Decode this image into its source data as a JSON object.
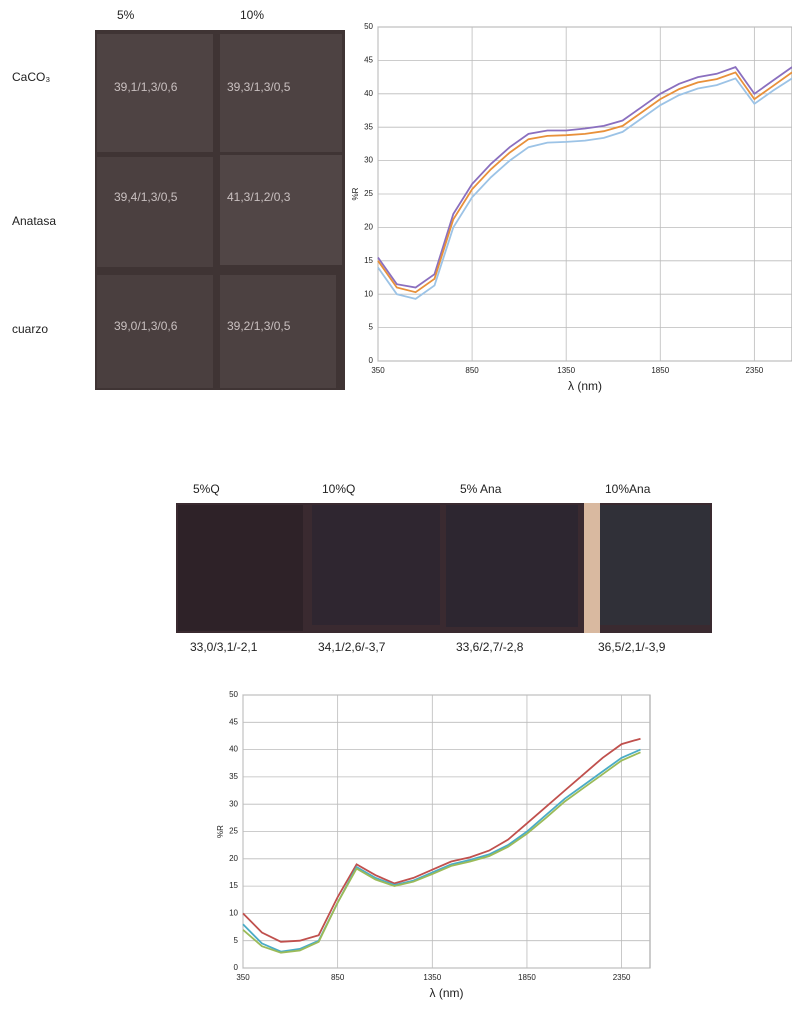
{
  "top_panel": {
    "columns": [
      "5%",
      "10%"
    ],
    "rows": [
      {
        "label": "CaCO₃",
        "cells": [
          "39,1/1,3/0,6",
          "39,3/1,3/0,5"
        ]
      },
      {
        "label": "Anatasa",
        "cells": [
          "39,4/1,3/0,5",
          "41,3/1,2/0,3"
        ]
      },
      {
        "label": "cuarzo",
        "cells": [
          "39,0/1,3/0,6",
          "39,2/1,3/0,5"
        ]
      }
    ]
  },
  "bottom_panel": {
    "samples": [
      {
        "label": "5%Q",
        "value": "33,0/3,1/-2,1"
      },
      {
        "label": "10%Q",
        "value": "34,1/2,6/-3,7"
      },
      {
        "label": "5% Ana",
        "value": "33,6/2,7/-2,8"
      },
      {
        "label": "10%Ana",
        "value": "36,5/2,1/-3,9"
      }
    ]
  },
  "chart_data": [
    {
      "type": "line",
      "ylabel": "%R",
      "xlabel": "λ (nm)",
      "grid": true,
      "x": [
        350,
        450,
        550,
        650,
        750,
        850,
        950,
        1050,
        1150,
        1250,
        1350,
        1450,
        1550,
        1650,
        1750,
        1850,
        1950,
        2050,
        2150,
        2250,
        2350,
        2450,
        2550
      ],
      "xlim": [
        350,
        2550
      ],
      "ylim": [
        0,
        50
      ],
      "xticks": [
        350,
        850,
        1350,
        1850,
        2350
      ],
      "yticks": [
        0,
        5,
        10,
        15,
        20,
        25,
        30,
        35,
        40,
        45,
        50
      ],
      "series": [
        {
          "color": "#8a6fbf",
          "values": [
            15.5,
            11.5,
            11,
            13,
            22,
            26.5,
            29.5,
            32,
            34,
            34.5,
            34.5,
            34.8,
            35.2,
            36,
            38,
            40,
            41.5,
            42.5,
            43,
            44,
            40,
            42,
            44
          ]
        },
        {
          "color": "#e8903a",
          "values": [
            15,
            11,
            10.3,
            12.3,
            21.2,
            25.7,
            28.7,
            31.2,
            33.2,
            33.7,
            33.8,
            34,
            34.4,
            35.2,
            37.2,
            39.2,
            40.7,
            41.7,
            42.2,
            43.2,
            39.2,
            41.2,
            43.2
          ]
        },
        {
          "color": "#9cc3e6",
          "values": [
            14,
            10,
            9.3,
            11.3,
            20,
            24.5,
            27.5,
            30,
            32,
            32.7,
            32.8,
            33,
            33.4,
            34.3,
            36.3,
            38.3,
            39.8,
            40.8,
            41.3,
            42.3,
            38.5,
            40.5,
            42.3
          ]
        }
      ]
    },
    {
      "type": "line",
      "ylabel": "%R",
      "xlabel": "λ (nm)",
      "grid": true,
      "x": [
        350,
        450,
        550,
        650,
        750,
        850,
        950,
        1050,
        1150,
        1250,
        1350,
        1450,
        1550,
        1650,
        1750,
        1850,
        1950,
        2050,
        2150,
        2250,
        2350,
        2450
      ],
      "xlim": [
        350,
        2500
      ],
      "ylim": [
        0,
        50
      ],
      "xticks": [
        350,
        850,
        1350,
        1850,
        2350
      ],
      "yticks": [
        0,
        5,
        10,
        15,
        20,
        25,
        30,
        35,
        40,
        45,
        50
      ],
      "series": [
        {
          "color": "#c0504d",
          "values": [
            10,
            6.5,
            4.8,
            5,
            6,
            13,
            19,
            17,
            15.5,
            16.5,
            18,
            19.5,
            20.3,
            21.5,
            23.5,
            26.5,
            29.5,
            32.5,
            35.5,
            38.5,
            41,
            42
          ]
        },
        {
          "color": "#4bacc6",
          "values": [
            8,
            4.5,
            3,
            3.5,
            5,
            12,
            18.5,
            16.5,
            15.2,
            16,
            17.5,
            19,
            19.8,
            20.8,
            22.5,
            25,
            28,
            31,
            33.5,
            36,
            38.5,
            40
          ]
        },
        {
          "color": "#9bbb59",
          "values": [
            7,
            4,
            2.8,
            3.2,
            4.8,
            12,
            18.2,
            16.2,
            15,
            15.8,
            17.2,
            18.7,
            19.5,
            20.5,
            22.2,
            24.6,
            27.5,
            30.5,
            33,
            35.5,
            38,
            39.5
          ]
        }
      ]
    }
  ]
}
